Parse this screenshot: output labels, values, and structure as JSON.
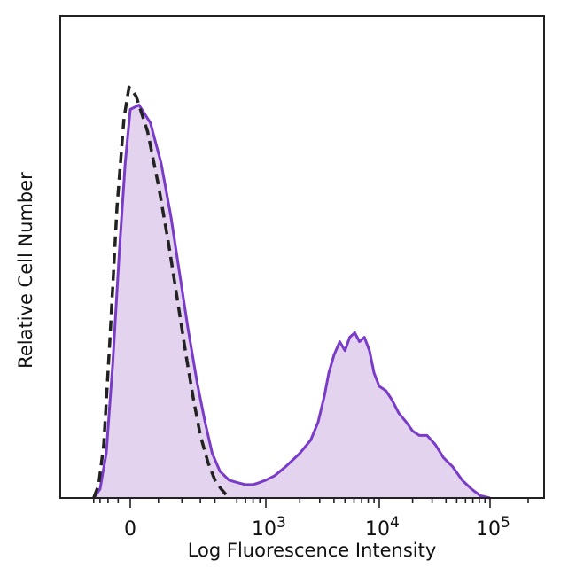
{
  "chart_data": {
    "type": "area",
    "title": "",
    "xlabel": "Log Fluorescence Intensity",
    "ylabel": "Relative Cell Number",
    "x_scale": "biexponential",
    "xlim": [
      -500,
      200000
    ],
    "ylim": [
      0,
      1.0
    ],
    "x_ticks": [
      {
        "value": 0,
        "base": "0",
        "exp": ""
      },
      {
        "value": 1000,
        "base": "10",
        "exp": "3"
      },
      {
        "value": 10000,
        "base": "10",
        "exp": "4"
      },
      {
        "value": 100000,
        "base": "10",
        "exp": "5"
      }
    ],
    "grid": false,
    "legend": "none",
    "series": [
      {
        "style": "filled-solid",
        "color": "#7a3cc8",
        "fill": "#e3d3ef",
        "points": [
          [
            -400,
            0.0
          ],
          [
            -300,
            0.02
          ],
          [
            -220,
            0.1
          ],
          [
            -150,
            0.3
          ],
          [
            -90,
            0.55
          ],
          [
            -40,
            0.75
          ],
          [
            0,
            0.87
          ],
          [
            30,
            0.88
          ],
          [
            70,
            0.84
          ],
          [
            110,
            0.75
          ],
          [
            150,
            0.63
          ],
          [
            190,
            0.5
          ],
          [
            230,
            0.38
          ],
          [
            280,
            0.26
          ],
          [
            330,
            0.17
          ],
          [
            380,
            0.1
          ],
          [
            440,
            0.06
          ],
          [
            520,
            0.04
          ],
          [
            600,
            0.035
          ],
          [
            700,
            0.03
          ],
          [
            800,
            0.03
          ],
          [
            900,
            0.035
          ],
          [
            1000,
            0.04
          ],
          [
            1200,
            0.05
          ],
          [
            1500,
            0.07
          ],
          [
            2000,
            0.1
          ],
          [
            2500,
            0.13
          ],
          [
            2900,
            0.17
          ],
          [
            3300,
            0.23
          ],
          [
            3600,
            0.28
          ],
          [
            4000,
            0.32
          ],
          [
            4500,
            0.35
          ],
          [
            5000,
            0.33
          ],
          [
            5500,
            0.36
          ],
          [
            6100,
            0.37
          ],
          [
            6700,
            0.35
          ],
          [
            7400,
            0.36
          ],
          [
            8200,
            0.33
          ],
          [
            9000,
            0.28
          ],
          [
            10000,
            0.25
          ],
          [
            11500,
            0.24
          ],
          [
            13000,
            0.22
          ],
          [
            15000,
            0.19
          ],
          [
            17500,
            0.17
          ],
          [
            20000,
            0.15
          ],
          [
            23000,
            0.14
          ],
          [
            27000,
            0.14
          ],
          [
            32000,
            0.12
          ],
          [
            38000,
            0.09
          ],
          [
            46000,
            0.07
          ],
          [
            56000,
            0.04
          ],
          [
            68000,
            0.02
          ],
          [
            82000,
            0.005
          ],
          [
            100000,
            0.0
          ]
        ]
      },
      {
        "style": "dashed",
        "color": "#222222",
        "points": [
          [
            -400,
            0.0
          ],
          [
            -320,
            0.03
          ],
          [
            -250,
            0.12
          ],
          [
            -180,
            0.35
          ],
          [
            -110,
            0.65
          ],
          [
            -50,
            0.85
          ],
          [
            -10,
            0.92
          ],
          [
            20,
            0.9
          ],
          [
            60,
            0.82
          ],
          [
            100,
            0.7
          ],
          [
            140,
            0.57
          ],
          [
            180,
            0.44
          ],
          [
            220,
            0.32
          ],
          [
            260,
            0.22
          ],
          [
            300,
            0.14
          ],
          [
            350,
            0.08
          ],
          [
            400,
            0.04
          ],
          [
            450,
            0.02
          ],
          [
            520,
            0.0
          ]
        ]
      }
    ]
  }
}
